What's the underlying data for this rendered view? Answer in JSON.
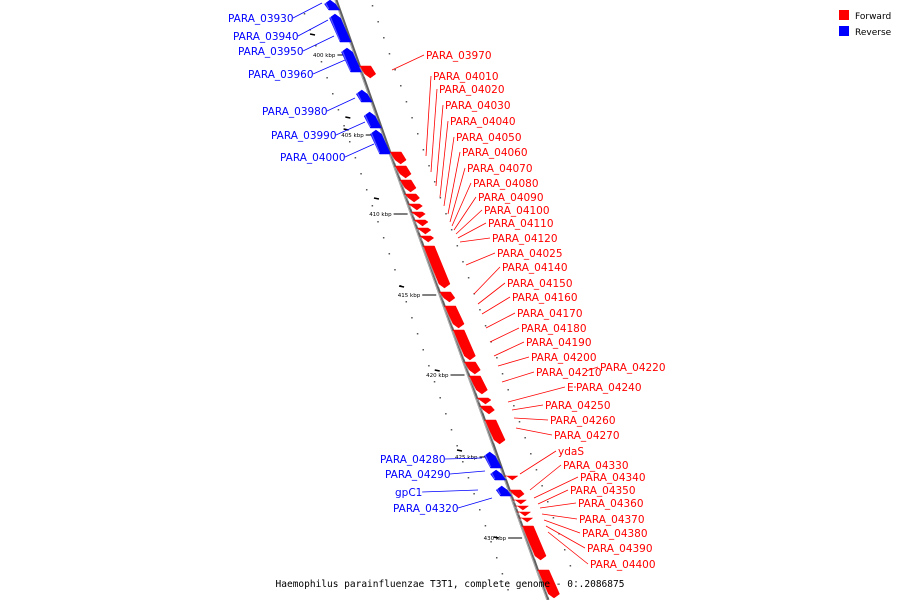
{
  "caption": "Haemophilus parainfluenzae T3T1, complete genome - 0..2086875",
  "legend": [
    {
      "label": "Forward",
      "color": "#ff0000"
    },
    {
      "label": "Reverse",
      "color": "#0000ff"
    }
  ],
  "colors": {
    "forward": "#ff0000",
    "reverse": "#0000ff",
    "axis": "#808080"
  },
  "ticks": [
    "400 kbp",
    "405 kbp",
    "410 kbp",
    "415 kbp",
    "420 kbp",
    "425 kbp",
    "430 kbp"
  ],
  "reverse_labels": [
    "PARA_03930",
    "PARA_03940",
    "PARA_03950",
    "PARA_03960",
    "PARA_03980",
    "PARA_03990",
    "PARA_04000",
    "PARA_04280",
    "PARA_04290",
    "gpC1",
    "PARA_04320"
  ],
  "forward_labels": [
    "PARA_03970",
    "PARA_04010",
    "PARA_04020",
    "PARA_04030",
    "PARA_04040",
    "PARA_04050",
    "PARA_04060",
    "PARA_04070",
    "PARA_04080",
    "PARA_04090",
    "PARA_04100",
    "PARA_04110",
    "PARA_04120",
    "PARA_04025",
    "PARA_04140",
    "PARA_04150",
    "PARA_04160",
    "PARA_04170",
    "PARA_04180",
    "PARA_04190",
    "PARA_04200",
    "PARA_04210",
    "PARA_04220",
    "E",
    "PARA_04240",
    "PARA_04250",
    "PARA_04260",
    "PARA_04270",
    "ydaS",
    "PARA_04330",
    "PARA_04340",
    "PARA_04350",
    "PARA_04360",
    "PARA_04370",
    "PARA_04380",
    "PARA_04390",
    "PARA_04400"
  ]
}
